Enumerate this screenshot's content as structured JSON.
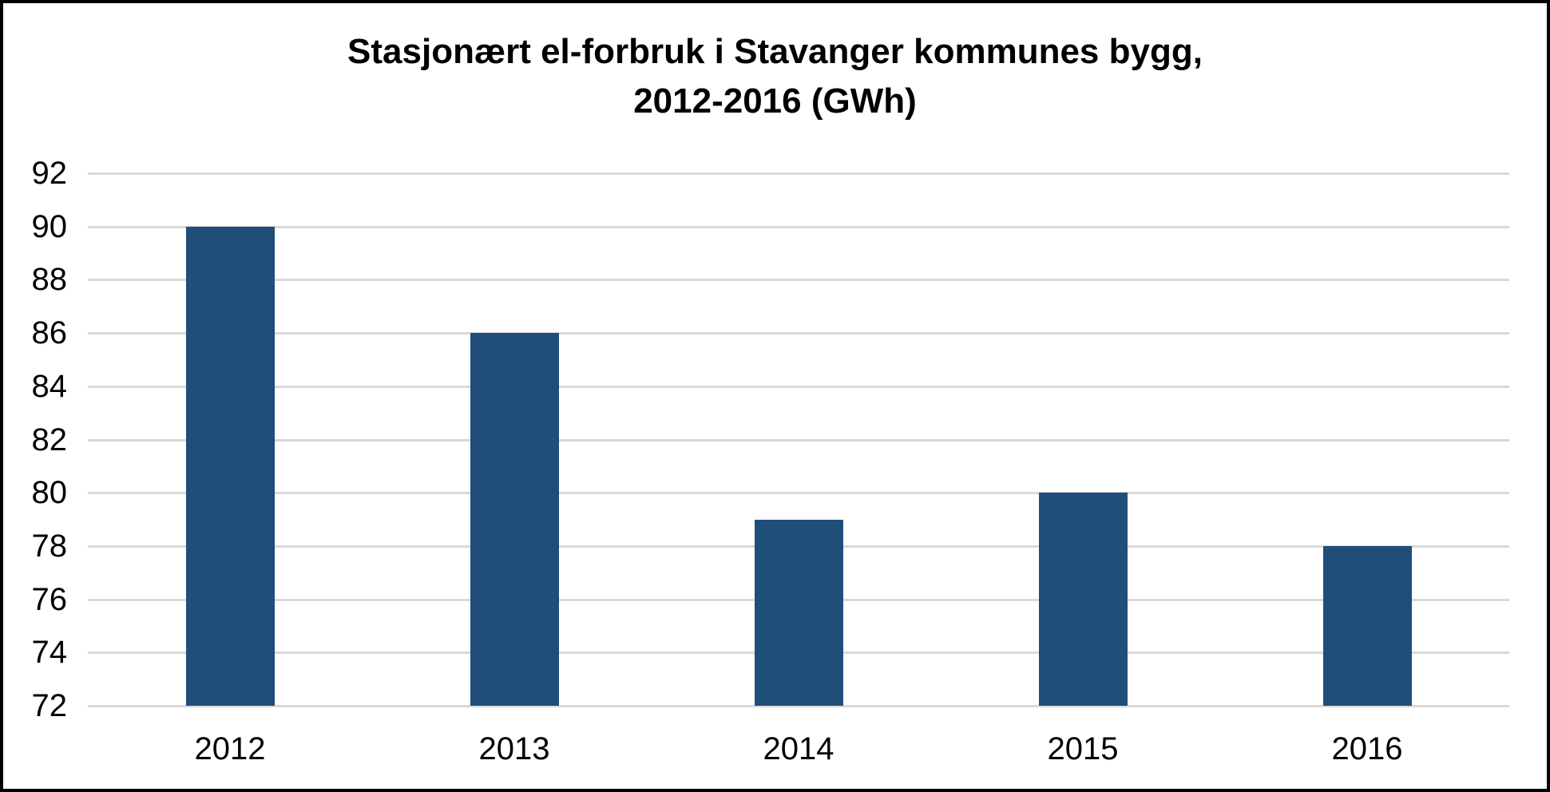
{
  "window": {
    "background_color": "#ffffff",
    "frame_border_color": "#000000"
  },
  "title": {
    "line1": "Stasjonært el-forbruk i Stavanger kommunes bygg,",
    "line2": "2012-2016 (GWh)"
  },
  "chart_data": {
    "type": "bar",
    "title": "Stasjonært el-forbruk i Stavanger kommunes bygg, 2012-2016 (GWh)",
    "categories": [
      "2012",
      "2013",
      "2014",
      "2015",
      "2016"
    ],
    "values": [
      90,
      86,
      79,
      80,
      78
    ],
    "xlabel": "",
    "ylabel": "",
    "ylim": [
      72,
      92
    ],
    "ytick_step": 2,
    "yticks": [
      72,
      74,
      76,
      78,
      80,
      82,
      84,
      86,
      88,
      90,
      92
    ],
    "grid": true,
    "legend_position": "none",
    "bar_color": "#1F4E79",
    "gridline_color": "#D9D9D9",
    "text_color": "#000000"
  }
}
